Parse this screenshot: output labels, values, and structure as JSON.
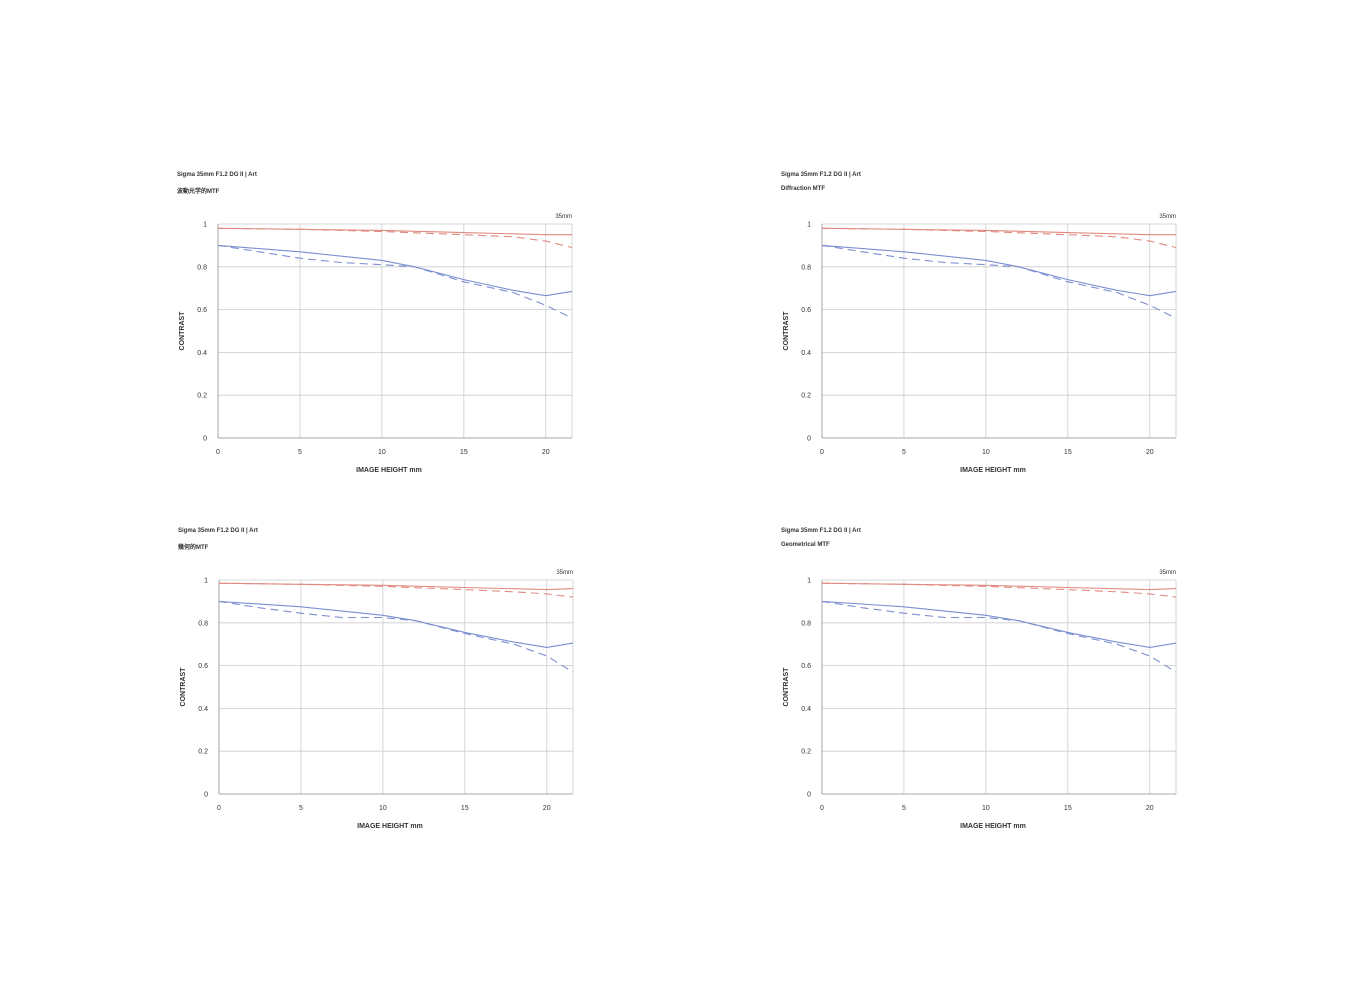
{
  "colors": {
    "sagittal_low": "#e08a80",
    "meridional_low": "#e08a80",
    "sagittal_high": "#7b8fd0",
    "meridional_high": "#7b8fd0",
    "grid": "#cccccc",
    "axis": "#999999"
  },
  "chart_data": [
    {
      "type": "line",
      "title": "Sigma 35mm F1.2 DG II | Art",
      "subtitle": "波動光学的MTF",
      "focal": "35mm",
      "xlabel": "IMAGE HEIGHT  mm",
      "ylabel": "CONTRAST",
      "xlim": [
        0,
        21.6
      ],
      "ylim": [
        0,
        1
      ],
      "xticks": [
        "0",
        "5",
        "10",
        "15",
        "20"
      ],
      "yticks": [
        "0",
        "0.2",
        "0.4",
        "0.6",
        "0.8",
        "1"
      ],
      "grid": true,
      "series": [
        {
          "style": "solid",
          "color": "red",
          "x": [
            0,
            5,
            10,
            15,
            20,
            21.6
          ],
          "y": [
            0.98,
            0.975,
            0.97,
            0.96,
            0.95,
            0.95
          ]
        },
        {
          "style": "dashed",
          "color": "red",
          "x": [
            0,
            5,
            10,
            15,
            18,
            20,
            21.6
          ],
          "y": [
            0.98,
            0.975,
            0.965,
            0.95,
            0.94,
            0.92,
            0.89
          ]
        },
        {
          "style": "solid",
          "color": "blue",
          "x": [
            0,
            5,
            10,
            12,
            15,
            18,
            20,
            21.6
          ],
          "y": [
            0.9,
            0.87,
            0.83,
            0.8,
            0.74,
            0.69,
            0.665,
            0.685
          ]
        },
        {
          "style": "dashed",
          "color": "blue",
          "x": [
            0,
            2.5,
            5,
            7.5,
            10,
            12,
            15,
            18,
            20,
            21.6
          ],
          "y": [
            0.9,
            0.87,
            0.84,
            0.82,
            0.81,
            0.8,
            0.73,
            0.68,
            0.62,
            0.56
          ]
        }
      ]
    },
    {
      "type": "line",
      "title": "Sigma 35mm F1.2 DG II | Art",
      "subtitle": "Diffraction MTF",
      "focal": "35mm",
      "xlabel": "IMAGE HEIGHT  mm",
      "ylabel": "CONTRAST",
      "xlim": [
        0,
        21.6
      ],
      "ylim": [
        0,
        1
      ],
      "xticks": [
        "0",
        "5",
        "10",
        "15",
        "20"
      ],
      "yticks": [
        "0",
        "0.2",
        "0.4",
        "0.6",
        "0.8",
        "1"
      ],
      "grid": true,
      "series": [
        {
          "style": "solid",
          "color": "red",
          "x": [
            0,
            5,
            10,
            15,
            20,
            21.6
          ],
          "y": [
            0.98,
            0.975,
            0.97,
            0.96,
            0.95,
            0.95
          ]
        },
        {
          "style": "dashed",
          "color": "red",
          "x": [
            0,
            5,
            10,
            15,
            18,
            20,
            21.6
          ],
          "y": [
            0.98,
            0.975,
            0.965,
            0.95,
            0.94,
            0.92,
            0.89
          ]
        },
        {
          "style": "solid",
          "color": "blue",
          "x": [
            0,
            5,
            10,
            12,
            15,
            18,
            20,
            21.6
          ],
          "y": [
            0.9,
            0.87,
            0.83,
            0.8,
            0.74,
            0.69,
            0.665,
            0.685
          ]
        },
        {
          "style": "dashed",
          "color": "blue",
          "x": [
            0,
            2.5,
            5,
            7.5,
            10,
            12,
            15,
            18,
            20,
            21.6
          ],
          "y": [
            0.9,
            0.87,
            0.84,
            0.82,
            0.81,
            0.8,
            0.73,
            0.68,
            0.62,
            0.56
          ]
        }
      ]
    },
    {
      "type": "line",
      "title": "Sigma 35mm F1.2 DG II | Art",
      "subtitle": "幾何的MTF",
      "focal": "35mm",
      "xlabel": "IMAGE HEIGHT  mm",
      "ylabel": "CONTRAST",
      "xlim": [
        0,
        21.6
      ],
      "ylim": [
        0,
        1
      ],
      "xticks": [
        "0",
        "5",
        "10",
        "15",
        "20"
      ],
      "yticks": [
        "0",
        "0.2",
        "0.4",
        "0.6",
        "0.8",
        "1"
      ],
      "grid": true,
      "series": [
        {
          "style": "solid",
          "color": "red",
          "x": [
            0,
            5,
            10,
            15,
            20,
            21.6
          ],
          "y": [
            0.985,
            0.98,
            0.975,
            0.965,
            0.955,
            0.96
          ]
        },
        {
          "style": "dashed",
          "color": "red",
          "x": [
            0,
            5,
            10,
            15,
            18,
            20,
            21.6
          ],
          "y": [
            0.985,
            0.98,
            0.97,
            0.955,
            0.945,
            0.935,
            0.92
          ]
        },
        {
          "style": "solid",
          "color": "blue",
          "x": [
            0,
            5,
            10,
            12,
            15,
            18,
            20,
            21.6
          ],
          "y": [
            0.9,
            0.875,
            0.835,
            0.81,
            0.755,
            0.71,
            0.685,
            0.705
          ]
        },
        {
          "style": "dashed",
          "color": "blue",
          "x": [
            0,
            2.5,
            5,
            7.5,
            10,
            12,
            15,
            18,
            20,
            21.6
          ],
          "y": [
            0.9,
            0.87,
            0.845,
            0.825,
            0.825,
            0.81,
            0.75,
            0.7,
            0.645,
            0.57
          ]
        }
      ]
    },
    {
      "type": "line",
      "title": "Sigma 35mm F1.2 DG II | Art",
      "subtitle": "Geometrical MTF",
      "focal": "35mm",
      "xlabel": "IMAGE HEIGHT  mm",
      "ylabel": "CONTRAST",
      "xlim": [
        0,
        21.6
      ],
      "ylim": [
        0,
        1
      ],
      "xticks": [
        "0",
        "5",
        "10",
        "15",
        "20"
      ],
      "yticks": [
        "0",
        "0.2",
        "0.4",
        "0.6",
        "0.8",
        "1"
      ],
      "grid": true,
      "series": [
        {
          "style": "solid",
          "color": "red",
          "x": [
            0,
            5,
            10,
            15,
            20,
            21.6
          ],
          "y": [
            0.985,
            0.98,
            0.975,
            0.965,
            0.955,
            0.96
          ]
        },
        {
          "style": "dashed",
          "color": "red",
          "x": [
            0,
            5,
            10,
            15,
            18,
            20,
            21.6
          ],
          "y": [
            0.985,
            0.98,
            0.97,
            0.955,
            0.945,
            0.935,
            0.92
          ]
        },
        {
          "style": "solid",
          "color": "blue",
          "x": [
            0,
            5,
            10,
            12,
            15,
            18,
            20,
            21.6
          ],
          "y": [
            0.9,
            0.875,
            0.835,
            0.81,
            0.755,
            0.71,
            0.685,
            0.705
          ]
        },
        {
          "style": "dashed",
          "color": "blue",
          "x": [
            0,
            2.5,
            5,
            7.5,
            10,
            12,
            15,
            18,
            20,
            21.6
          ],
          "y": [
            0.9,
            0.87,
            0.845,
            0.825,
            0.825,
            0.81,
            0.75,
            0.7,
            0.645,
            0.57
          ]
        }
      ]
    }
  ]
}
